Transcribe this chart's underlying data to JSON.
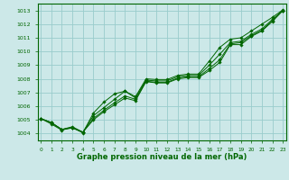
{
  "title": "Graphe pression niveau de la mer (hPa)",
  "bg_color": "#cce8e8",
  "grid_color": "#99cccc",
  "line_color": "#006600",
  "x_ticks": [
    0,
    1,
    2,
    3,
    4,
    5,
    6,
    7,
    8,
    9,
    10,
    11,
    12,
    13,
    14,
    15,
    16,
    17,
    18,
    19,
    20,
    21,
    22,
    23
  ],
  "ylim": [
    1003.5,
    1013.5
  ],
  "xlim": [
    -0.3,
    23.3
  ],
  "yticks": [
    1004,
    1005,
    1006,
    1007,
    1008,
    1009,
    1010,
    1011,
    1012,
    1013
  ],
  "line1": [
    1005.1,
    1004.8,
    1004.3,
    1004.4,
    1004.1,
    1005.0,
    1005.6,
    1006.1,
    1006.6,
    1006.4,
    1007.8,
    1007.7,
    1007.7,
    1008.0,
    1008.1,
    1008.1,
    1008.6,
    1009.2,
    1010.5,
    1010.5,
    1011.1,
    1011.5,
    1012.2,
    1013.0
  ],
  "line2": [
    1005.1,
    1004.8,
    1004.3,
    1004.45,
    1004.1,
    1005.1,
    1005.7,
    1006.25,
    1006.75,
    1006.5,
    1007.82,
    1007.75,
    1007.75,
    1008.05,
    1008.15,
    1008.15,
    1008.75,
    1009.4,
    1010.55,
    1010.65,
    1011.15,
    1011.55,
    1012.25,
    1013.0
  ],
  "line3": [
    1005.1,
    1004.8,
    1004.3,
    1004.5,
    1004.1,
    1005.3,
    1005.9,
    1006.5,
    1007.1,
    1006.6,
    1007.9,
    1007.85,
    1007.85,
    1008.15,
    1008.25,
    1008.25,
    1009.0,
    1009.8,
    1010.65,
    1010.75,
    1011.25,
    1011.65,
    1012.35,
    1013.0
  ],
  "line4": [
    1005.1,
    1004.7,
    1004.25,
    1004.45,
    1004.05,
    1005.5,
    1006.3,
    1006.9,
    1007.1,
    1006.7,
    1008.0,
    1007.95,
    1007.95,
    1008.25,
    1008.35,
    1008.35,
    1009.3,
    1010.3,
    1010.9,
    1011.0,
    1011.5,
    1012.0,
    1012.5,
    1013.05
  ]
}
